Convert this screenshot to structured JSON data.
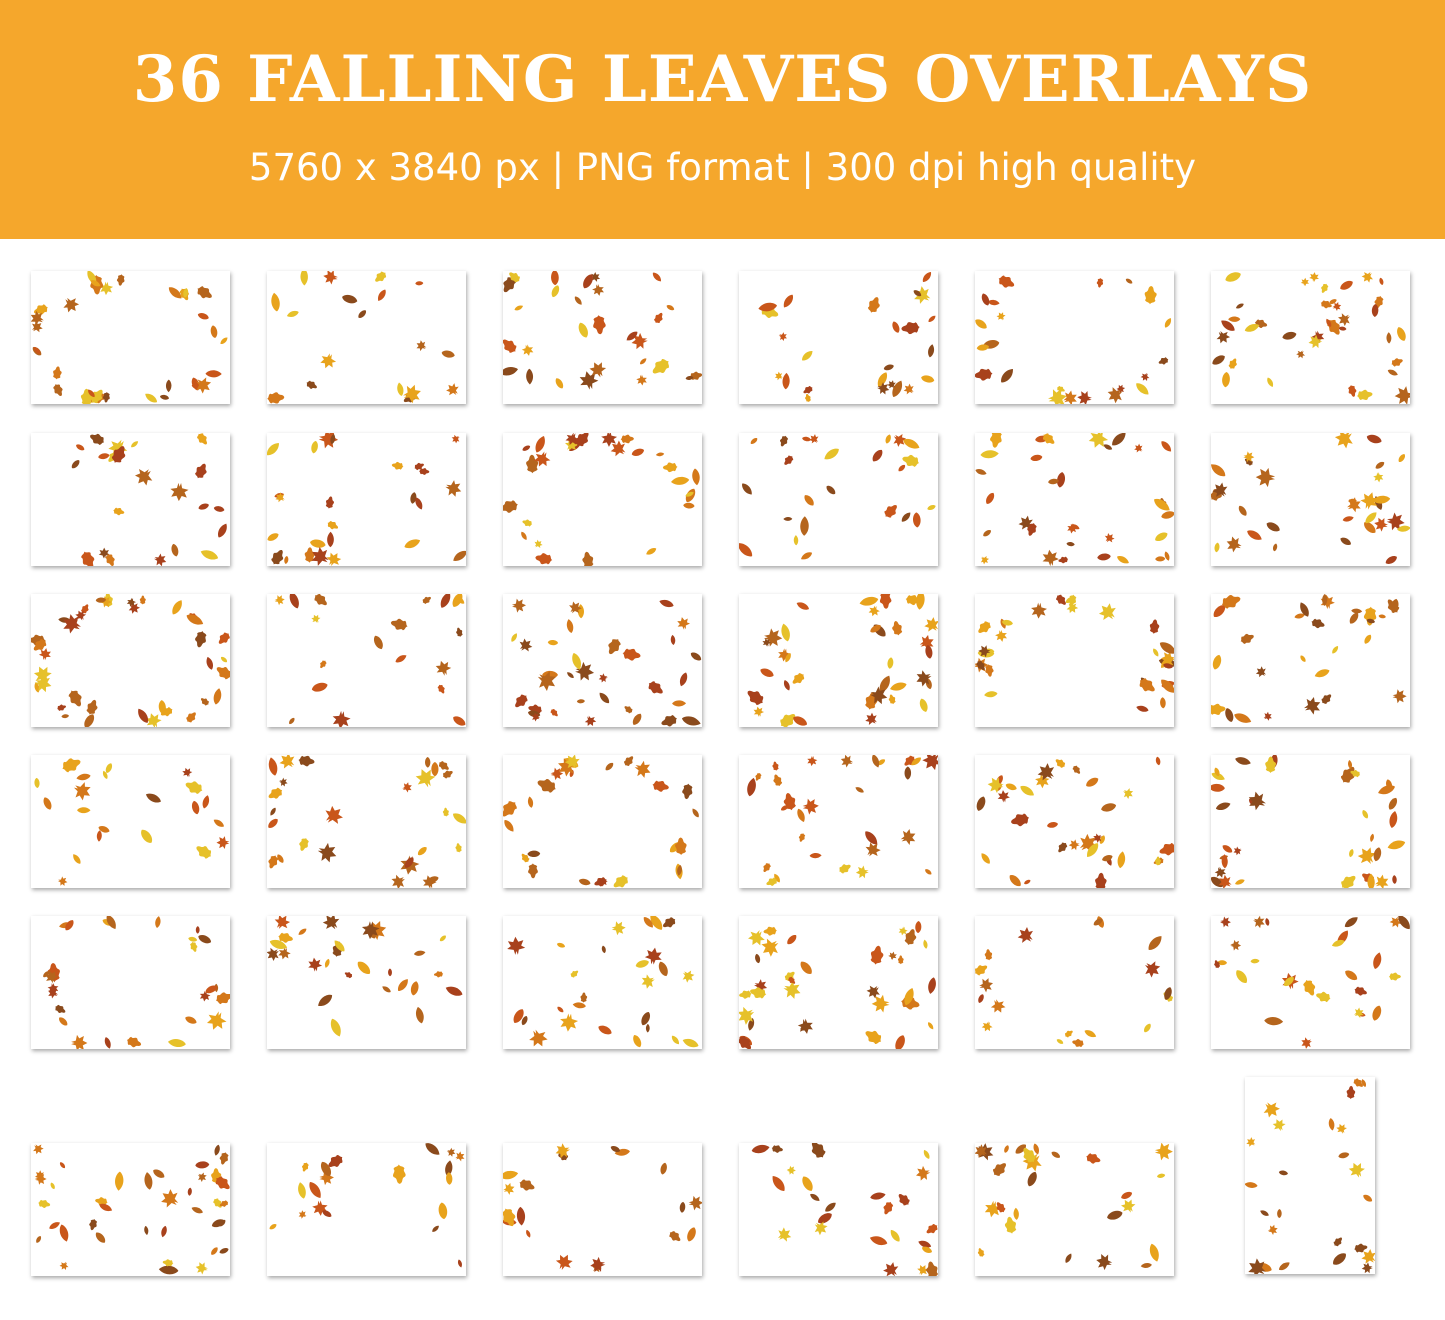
{
  "header": {
    "title": "36 FALLING LEAVES OVERLAYS",
    "subtitle": "5760 x 3840 px | PNG format | 300 dpi high quality",
    "background_color": "#f5a72c",
    "text_color": "#ffffff"
  },
  "gallery": {
    "thumbnail_count": 36,
    "leaf_colors": [
      "#e8a31c",
      "#d4781a",
      "#c9561a",
      "#a8411c",
      "#e6c12a",
      "#b5651d",
      "#8a4a1c"
    ]
  }
}
